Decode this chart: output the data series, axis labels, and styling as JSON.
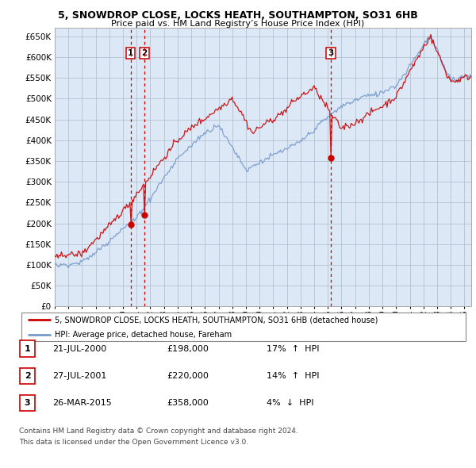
{
  "title1": "5, SNOWDROP CLOSE, LOCKS HEATH, SOUTHAMPTON, SO31 6HB",
  "title2": "Price paid vs. HM Land Registry’s House Price Index (HPI)",
  "legend_line1": "5, SNOWDROP CLOSE, LOCKS HEATH, SOUTHAMPTON, SO31 6HB (detached house)",
  "legend_line2": "HPI: Average price, detached house, Fareham",
  "footer1": "Contains HM Land Registry data © Crown copyright and database right 2024.",
  "footer2": "This data is licensed under the Open Government Licence v3.0.",
  "transactions": [
    {
      "num": 1,
      "date": "21-JUL-2000",
      "price": 198000,
      "hpi_pct": "17%",
      "direction": "↑"
    },
    {
      "num": 2,
      "date": "27-JUL-2001",
      "price": 220000,
      "hpi_pct": "14%",
      "direction": "↑"
    },
    {
      "num": 3,
      "date": "26-MAR-2015",
      "price": 358000,
      "hpi_pct": "4%",
      "direction": "↓"
    }
  ],
  "transaction_years": [
    2000.55,
    2001.57,
    2015.23
  ],
  "transaction_prices": [
    198000,
    220000,
    358000
  ],
  "vline_color": "#cc0000",
  "dot_color": "#cc0000",
  "hpi_color": "#7799cc",
  "price_color": "#cc0000",
  "chart_bg": "#dce8f5",
  "background_color": "#ffffff",
  "grid_color": "#aabbcc",
  "ylim": [
    0,
    670000
  ],
  "yticks": [
    0,
    50000,
    100000,
    150000,
    200000,
    250000,
    300000,
    350000,
    400000,
    450000,
    500000,
    550000,
    600000,
    650000
  ],
  "xmin": 1995.0,
  "xmax": 2025.5
}
